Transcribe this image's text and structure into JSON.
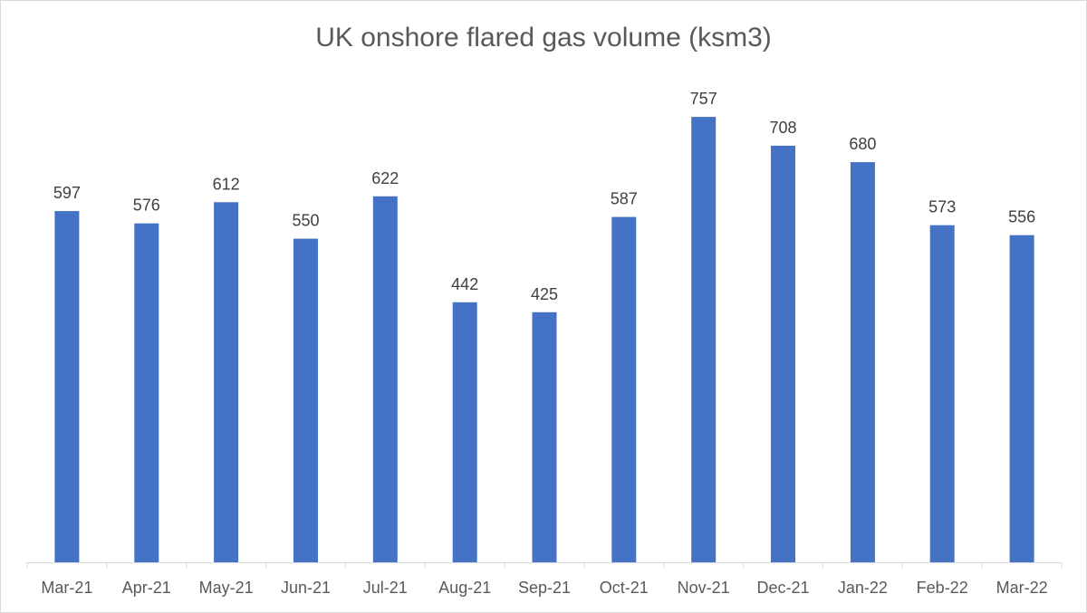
{
  "chart_data": {
    "type": "bar",
    "title": "UK onshore flared gas volume (ksm3)",
    "categories": [
      "Mar-21",
      "Apr-21",
      "May-21",
      "Jun-21",
      "Jul-21",
      "Aug-21",
      "Sep-21",
      "Oct-21",
      "Nov-21",
      "Dec-21",
      "Jan-22",
      "Feb-22",
      "Mar-22"
    ],
    "values": [
      597,
      576,
      612,
      550,
      622,
      442,
      425,
      587,
      757,
      708,
      680,
      573,
      556
    ],
    "xlabel": "",
    "ylabel": "",
    "ylim": [
      0,
      800
    ],
    "grid": false,
    "legend": "none",
    "data_labels": true,
    "bar_color": "#4472C4"
  }
}
